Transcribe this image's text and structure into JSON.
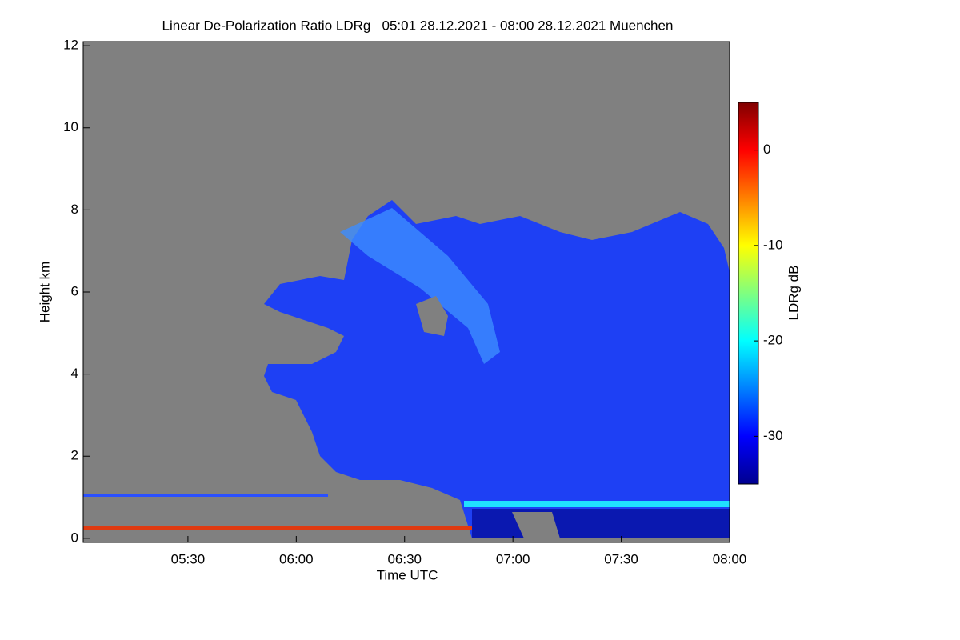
{
  "chart_data": {
    "type": "heatmap",
    "title": "Linear De-Polarization Ratio LDRg   05:01 28.12.2021 - 08:00 28.12.2021 Muenchen",
    "x_label": "Time UTC",
    "y_label": "Height km",
    "xlim": [
      301,
      480
    ],
    "xticks": [
      {
        "value": 330,
        "label": "05:30"
      },
      {
        "value": 360,
        "label": "06:00"
      },
      {
        "value": 390,
        "label": "06:30"
      },
      {
        "value": 420,
        "label": "07:00"
      },
      {
        "value": 450,
        "label": "07:30"
      },
      {
        "value": 480,
        "label": "08:00"
      }
    ],
    "ylim": [
      -0.1,
      12.1
    ],
    "yticks": [
      0,
      2,
      4,
      6,
      8,
      10,
      12
    ],
    "colorbar": {
      "label": "LDRg dB",
      "lim": [
        -35,
        5
      ],
      "ticks": [
        -30,
        -20,
        -10,
        0
      ],
      "colormap": "jet"
    }
  }
}
